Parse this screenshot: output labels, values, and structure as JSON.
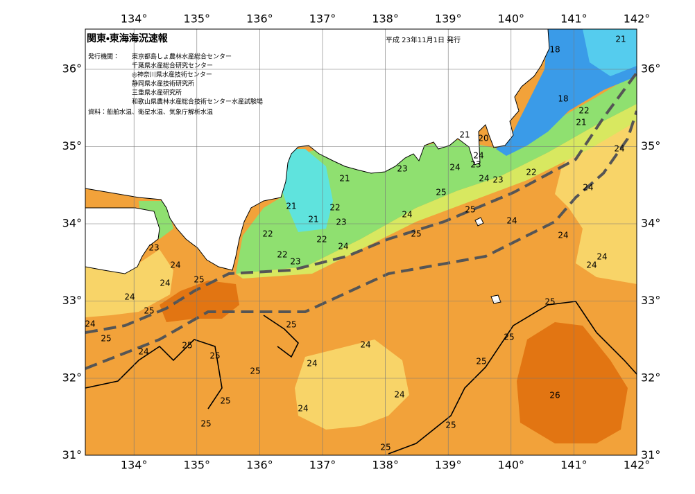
{
  "header": {
    "title": "関東・東海海況速報",
    "date": "平成 23年11月1日 発行",
    "issuers_label": "発行機関：",
    "issuers": [
      "東京都島しょ農林水産総合センター",
      "千葉県水産総合研究センター",
      "◎神奈川県水産技術センター",
      "静岡県水産技術研究所",
      "三重県水産研究所",
      "和歌山県農林水産総合技術センター水産試験場"
    ],
    "source": "資料：船舶水温、衛星水温、気象庁解析水温"
  },
  "map": {
    "lon_labels": [
      "134°",
      "135°",
      "136°",
      "137°",
      "138°",
      "139°",
      "140°",
      "141°",
      "142°"
    ],
    "lat_labels": [
      "36°",
      "35°",
      "34°",
      "33°",
      "32°",
      "31°"
    ],
    "contour_labels": [
      "18",
      "21",
      "18",
      "22",
      "21",
      "24",
      "21",
      "20",
      "24",
      "23",
      "24",
      "23",
      "24",
      "23",
      "22",
      "24",
      "21",
      "25",
      "25",
      "21",
      "22",
      "21",
      "23",
      "24",
      "24",
      "22",
      "22",
      "25",
      "24",
      "24",
      "23",
      "22",
      "24",
      "23",
      "24",
      "24",
      "25",
      "24",
      "24",
      "25",
      "25",
      "24",
      "25",
      "25",
      "25",
      "24",
      "25",
      "24",
      "25",
      "24",
      "25",
      "25",
      "24",
      "26",
      "25",
      "24",
      "25",
      "25",
      "25"
    ]
  }
}
